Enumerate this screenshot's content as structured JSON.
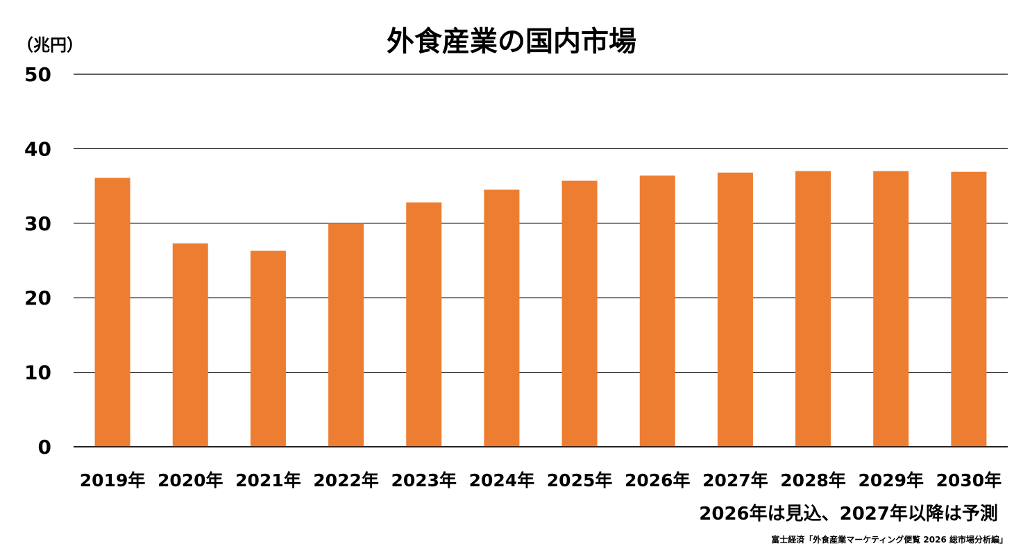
{
  "chart_data": {
    "type": "bar",
    "title": "外食産業の国内市場",
    "unit_label": "（兆円）",
    "categories": [
      "2019年",
      "2020年",
      "2021年",
      "2022年",
      "2023年",
      "2024年",
      "2025年",
      "2026年",
      "2027年",
      "2028年",
      "2029年",
      "2030年"
    ],
    "values": [
      36.1,
      27.3,
      26.3,
      30.0,
      32.8,
      34.5,
      35.7,
      36.4,
      36.8,
      37.0,
      37.0,
      36.9
    ],
    "ylim": [
      0,
      50
    ],
    "yticks": [
      0,
      10,
      20,
      30,
      40,
      50
    ],
    "grid": true,
    "bar_color": "#ED7D31",
    "note": "2026年は見込、2027年以降は予測",
    "source": "富士経済「外食産業マーケティング便覧 2026 総市場分析編」"
  }
}
